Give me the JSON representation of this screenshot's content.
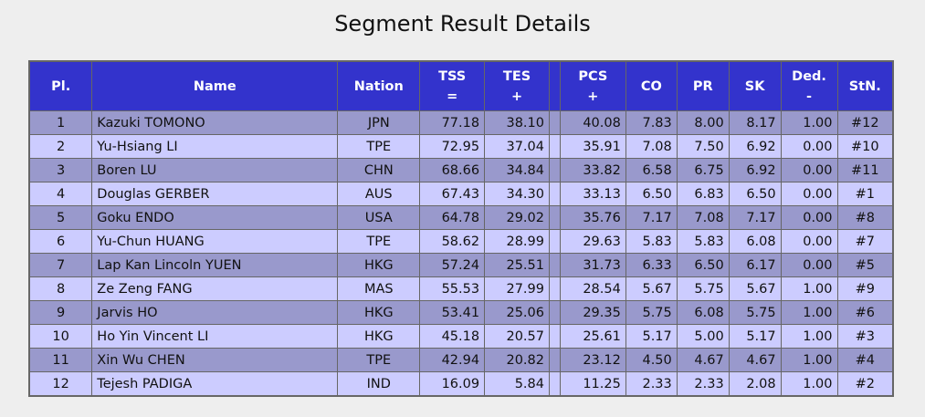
{
  "title": "Segment Result Details",
  "table": {
    "columns": [
      {
        "label": "Pl."
      },
      {
        "label": "Name"
      },
      {
        "label": "Nation"
      },
      {
        "label": "TSS",
        "sub": "="
      },
      {
        "label": "TES",
        "sub": "+"
      },
      {
        "label": "PCS",
        "sub": "+"
      },
      {
        "label": "CO"
      },
      {
        "label": "PR"
      },
      {
        "label": "SK"
      },
      {
        "label": "Ded.",
        "sub": "-"
      },
      {
        "label": "StN."
      }
    ],
    "rows": [
      [
        "1",
        "Kazuki TOMONO",
        "JPN",
        "77.18",
        "38.10",
        "40.08",
        "7.83",
        "8.00",
        "8.17",
        "1.00",
        "#12"
      ],
      [
        "2",
        "Yu-Hsiang LI",
        "TPE",
        "72.95",
        "37.04",
        "35.91",
        "7.08",
        "7.50",
        "6.92",
        "0.00",
        "#10"
      ],
      [
        "3",
        "Boren LU",
        "CHN",
        "68.66",
        "34.84",
        "33.82",
        "6.58",
        "6.75",
        "6.92",
        "0.00",
        "#11"
      ],
      [
        "4",
        "Douglas GERBER",
        "AUS",
        "67.43",
        "34.30",
        "33.13",
        "6.50",
        "6.83",
        "6.50",
        "0.00",
        "#1"
      ],
      [
        "5",
        "Goku ENDO",
        "USA",
        "64.78",
        "29.02",
        "35.76",
        "7.17",
        "7.08",
        "7.17",
        "0.00",
        "#8"
      ],
      [
        "6",
        "Yu-Chun HUANG",
        "TPE",
        "58.62",
        "28.99",
        "29.63",
        "5.83",
        "5.83",
        "6.08",
        "0.00",
        "#7"
      ],
      [
        "7",
        "Lap Kan Lincoln YUEN",
        "HKG",
        "57.24",
        "25.51",
        "31.73",
        "6.33",
        "6.50",
        "6.17",
        "0.00",
        "#5"
      ],
      [
        "8",
        "Ze Zeng FANG",
        "MAS",
        "55.53",
        "27.99",
        "28.54",
        "5.67",
        "5.75",
        "5.67",
        "1.00",
        "#9"
      ],
      [
        "9",
        "Jarvis HO",
        "HKG",
        "53.41",
        "25.06",
        "29.35",
        "5.75",
        "6.08",
        "5.75",
        "1.00",
        "#6"
      ],
      [
        "10",
        "Ho Yin Vincent LI",
        "HKG",
        "45.18",
        "20.57",
        "25.61",
        "5.17",
        "5.00",
        "5.17",
        "1.00",
        "#3"
      ],
      [
        "11",
        "Xin Wu CHEN",
        "TPE",
        "42.94",
        "20.82",
        "23.12",
        "4.50",
        "4.67",
        "4.67",
        "1.00",
        "#4"
      ],
      [
        "12",
        "Tejesh PADIGA",
        "IND",
        "16.09",
        "5.84",
        "11.25",
        "2.33",
        "2.33",
        "2.08",
        "1.00",
        "#2"
      ]
    ]
  }
}
